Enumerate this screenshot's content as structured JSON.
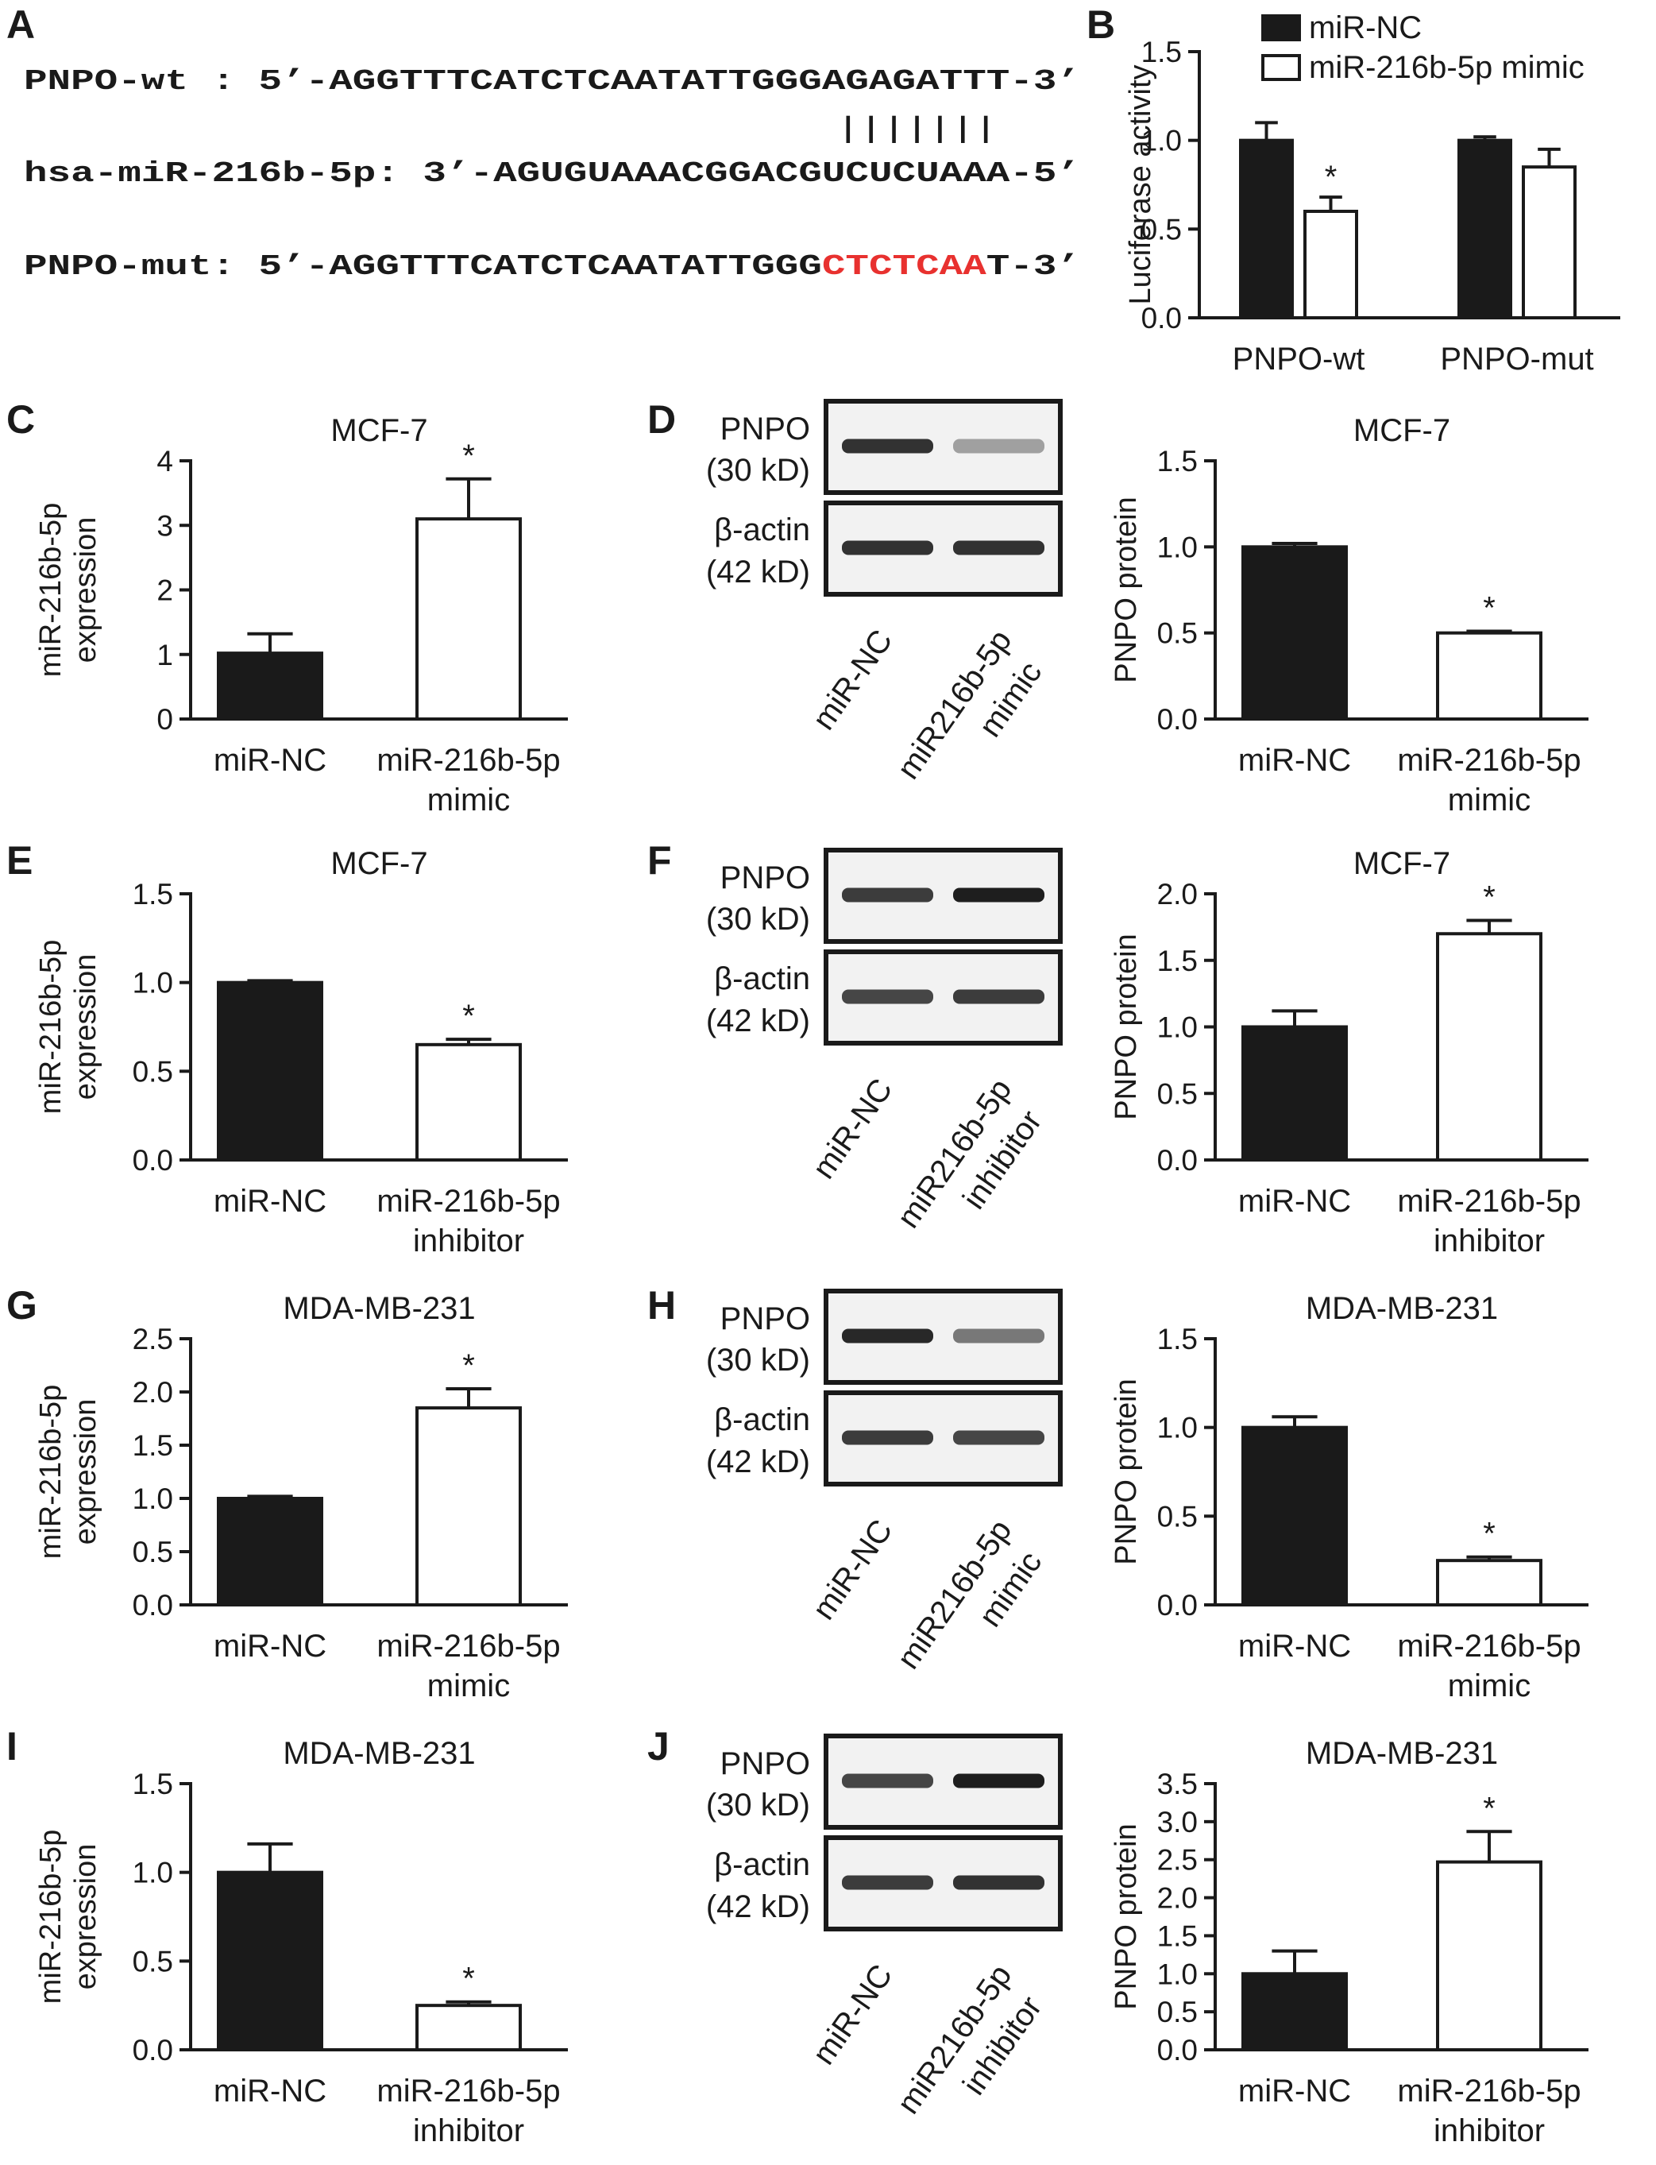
{
  "panels": {
    "A": "A",
    "B": "B",
    "C": "C",
    "D": "D",
    "E": "E",
    "F": "F",
    "G": "G",
    "H": "H",
    "I": "I",
    "J": "J"
  },
  "sequences": {
    "wt": {
      "prefix": "PNPO-wt  :  5’-",
      "seq": "AGGTTTCATCTCAATATTGGGAGAGATTT",
      "suffix": "-3’"
    },
    "pairing": "|||||||",
    "mirna": {
      "prefix": "hsa-miR-216b-5p:  3’-",
      "seq": "AGUGUAAACGGACGUCUCUAAA",
      "suffix": "-5’"
    },
    "mut": {
      "prefix": "PNPO-mut:  5’-",
      "seq_black": "AGGTTTCATCTCAATATTGGG",
      "seq_red": "CTCTCAA",
      "seq_end": "T",
      "suffix": "-3’"
    },
    "mut_color": "#e8312f"
  },
  "colors": {
    "black_bar": "#1a1a1a",
    "white_bar": "#ffffff"
  },
  "blots": [
    {
      "panel": "D",
      "top_label": [
        "PNPO",
        "(30 kD)"
      ],
      "bottom_label": [
        "β-actin",
        "(42 kD)"
      ],
      "lanes": [
        "miR-NC",
        "miR216b-5p",
        "mimic"
      ],
      "pnpo_intensity": [
        0.85,
        0.3
      ],
      "actin_intensity": [
        0.85,
        0.85
      ]
    },
    {
      "panel": "F",
      "top_label": [
        "PNPO",
        "(30 kD)"
      ],
      "bottom_label": [
        "β-actin",
        "(42 kD)"
      ],
      "lanes": [
        "miR-NC",
        "miR216b-5p",
        "inhibitor"
      ],
      "pnpo_intensity": [
        0.8,
        0.95
      ],
      "actin_intensity": [
        0.75,
        0.8
      ]
    },
    {
      "panel": "H",
      "top_label": [
        "PNPO",
        "(30 kD)"
      ],
      "bottom_label": [
        "β-actin",
        "(42 kD)"
      ],
      "lanes": [
        "miR-NC",
        "miR216b-5p",
        "mimic"
      ],
      "pnpo_intensity": [
        0.9,
        0.5
      ],
      "actin_intensity": [
        0.8,
        0.75
      ]
    },
    {
      "panel": "J",
      "top_label": [
        "PNPO",
        "(30 kD)"
      ],
      "bottom_label": [
        "β-actin",
        "(42 kD)"
      ],
      "lanes": [
        "miR-NC",
        "miR216b-5p",
        "inhibitor"
      ],
      "pnpo_intensity": [
        0.75,
        0.95
      ],
      "actin_intensity": [
        0.8,
        0.85
      ]
    }
  ],
  "chart_data": [
    {
      "id": "B",
      "type": "bar",
      "title": "",
      "ylabel": "Luciferase activity",
      "ylim": [
        0,
        1.5
      ],
      "yticks": [
        "0.0",
        "0.5",
        "1.0",
        "1.5"
      ],
      "categories": [
        "PNPO-wt",
        "PNPO-mut"
      ],
      "series": [
        {
          "name": "miR-NC",
          "values": [
            1.0,
            1.0
          ],
          "errors": [
            0.1,
            0.02
          ],
          "fill": "black"
        },
        {
          "name": "miR-216b-5p mimic",
          "values": [
            0.6,
            0.85
          ],
          "errors": [
            0.08,
            0.1
          ],
          "fill": "white"
        }
      ],
      "annotations": [
        {
          "category": 0,
          "series": 1,
          "text": "*"
        }
      ],
      "legend": "top"
    },
    {
      "id": "C",
      "type": "bar",
      "title": "MCF-7",
      "ylabel": [
        "miR-216b-5p",
        "expression"
      ],
      "ylim": [
        0,
        4
      ],
      "yticks": [
        "0",
        "1",
        "2",
        "3",
        "4"
      ],
      "categories": [
        [
          "miR-NC"
        ],
        [
          "miR-216b-5p",
          "mimic"
        ]
      ],
      "values": [
        1.02,
        3.1
      ],
      "errors": [
        0.3,
        0.62
      ],
      "fills": [
        "black",
        "white"
      ],
      "annotations": [
        {
          "bar": 1,
          "text": "*"
        }
      ]
    },
    {
      "id": "D",
      "type": "bar",
      "title": "MCF-7",
      "ylabel": [
        "PNPO protein"
      ],
      "ylim": [
        0,
        1.5
      ],
      "yticks": [
        "0.0",
        "0.5",
        "1.0",
        "1.5"
      ],
      "categories": [
        [
          "miR-NC"
        ],
        [
          "miR-216b-5p",
          "mimic"
        ]
      ],
      "values": [
        1.0,
        0.5
      ],
      "errors": [
        0.02,
        0.01
      ],
      "fills": [
        "black",
        "white"
      ],
      "annotations": [
        {
          "bar": 1,
          "text": "*"
        }
      ]
    },
    {
      "id": "E",
      "type": "bar",
      "title": "MCF-7",
      "ylabel": [
        "miR-216b-5p",
        "expression"
      ],
      "ylim": [
        0,
        1.5
      ],
      "yticks": [
        "0.0",
        "0.5",
        "1.0",
        "1.5"
      ],
      "categories": [
        [
          "miR-NC"
        ],
        [
          "miR-216b-5p",
          "inhibitor"
        ]
      ],
      "values": [
        1.0,
        0.65
      ],
      "errors": [
        0.01,
        0.03
      ],
      "fills": [
        "black",
        "white"
      ],
      "annotations": [
        {
          "bar": 1,
          "text": "*"
        }
      ]
    },
    {
      "id": "F",
      "type": "bar",
      "title": "MCF-7",
      "ylabel": [
        "PNPO protein"
      ],
      "ylim": [
        0,
        2.0
      ],
      "yticks": [
        "0.0",
        "0.5",
        "1.0",
        "1.5",
        "2.0"
      ],
      "categories": [
        [
          "miR-NC"
        ],
        [
          "miR-216b-5p",
          "inhibitor"
        ]
      ],
      "values": [
        1.0,
        1.7
      ],
      "errors": [
        0.12,
        0.1
      ],
      "fills": [
        "black",
        "white"
      ],
      "annotations": [
        {
          "bar": 1,
          "text": "*"
        }
      ]
    },
    {
      "id": "G",
      "type": "bar",
      "title": "MDA-MB-231",
      "ylabel": [
        "miR-216b-5p",
        "expression"
      ],
      "ylim": [
        0,
        2.5
      ],
      "yticks": [
        "0.0",
        "0.5",
        "1.0",
        "1.5",
        "2.0",
        "2.5"
      ],
      "categories": [
        [
          "miR-NC"
        ],
        [
          "miR-216b-5p",
          "mimic"
        ]
      ],
      "values": [
        1.0,
        1.85
      ],
      "errors": [
        0.02,
        0.18
      ],
      "fills": [
        "black",
        "white"
      ],
      "annotations": [
        {
          "bar": 1,
          "text": "*"
        }
      ]
    },
    {
      "id": "H",
      "type": "bar",
      "title": "MDA-MB-231",
      "ylabel": [
        "PNPO protein"
      ],
      "ylim": [
        0,
        1.5
      ],
      "yticks": [
        "0.0",
        "0.5",
        "1.0",
        "1.5"
      ],
      "categories": [
        [
          "miR-NC"
        ],
        [
          "miR-216b-5p",
          "mimic"
        ]
      ],
      "values": [
        1.0,
        0.25
      ],
      "errors": [
        0.06,
        0.02
      ],
      "fills": [
        "black",
        "white"
      ],
      "annotations": [
        {
          "bar": 1,
          "text": "*"
        }
      ]
    },
    {
      "id": "I",
      "type": "bar",
      "title": "MDA-MB-231",
      "ylabel": [
        "miR-216b-5p",
        "expression"
      ],
      "ylim": [
        0,
        1.5
      ],
      "yticks": [
        "0.0",
        "0.5",
        "1.0",
        "1.5"
      ],
      "categories": [
        [
          "miR-NC"
        ],
        [
          "miR-216b-5p",
          "inhibitor"
        ]
      ],
      "values": [
        1.0,
        0.25
      ],
      "errors": [
        0.16,
        0.02
      ],
      "fills": [
        "black",
        "white"
      ],
      "annotations": [
        {
          "bar": 1,
          "text": "*"
        }
      ]
    },
    {
      "id": "J",
      "type": "bar",
      "title": "MDA-MB-231",
      "ylabel": [
        "PNPO protein"
      ],
      "ylim": [
        0,
        3.5
      ],
      "yticks": [
        "0.0",
        "0.5",
        "1.0",
        "1.5",
        "2.0",
        "2.5",
        "3.0",
        "3.5"
      ],
      "categories": [
        [
          "miR-NC"
        ],
        [
          "miR-216b-5p",
          "inhibitor"
        ]
      ],
      "values": [
        1.0,
        2.47
      ],
      "errors": [
        0.3,
        0.4
      ],
      "fills": [
        "black",
        "white"
      ],
      "annotations": [
        {
          "bar": 1,
          "text": "*"
        }
      ]
    }
  ]
}
